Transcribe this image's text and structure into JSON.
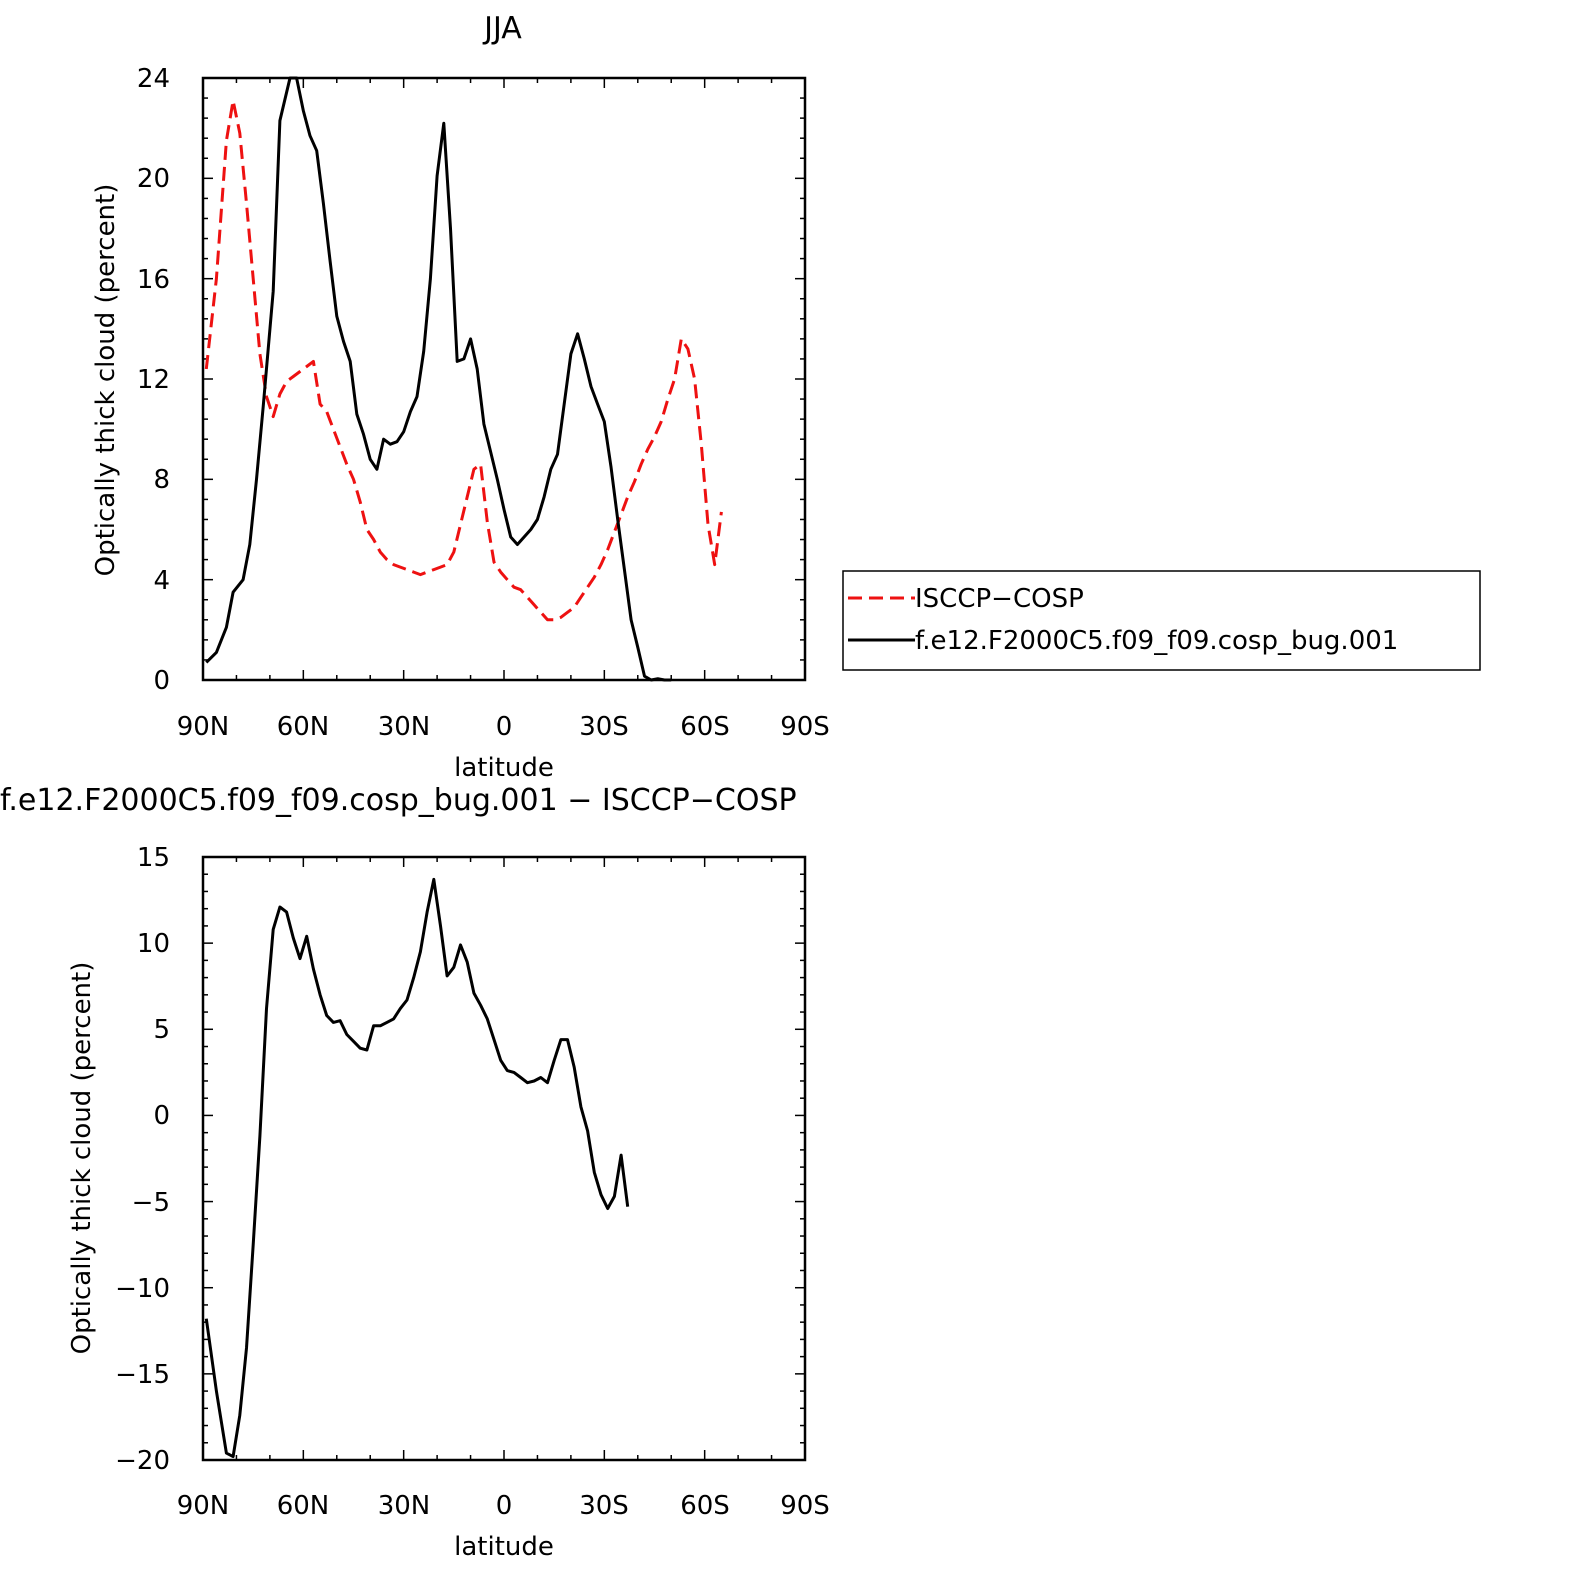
{
  "colors": {
    "model": "#000000",
    "obs": "#ee1111",
    "frame": "#000000",
    "background": "#ffffff"
  },
  "chart_data": [
    {
      "id": "top",
      "type": "line",
      "title": "JJA",
      "xlabel": "latitude",
      "ylabel": "Optically thick cloud (percent)",
      "xlim": [
        90,
        -90
      ],
      "ylim": [
        0,
        24
      ],
      "x_ticks": [
        90,
        60,
        30,
        0,
        -30,
        -60,
        -90
      ],
      "x_tick_labels": [
        "90N",
        "60N",
        "30N",
        "0",
        "30S",
        "60S",
        "90S"
      ],
      "y_ticks": [
        0,
        4,
        8,
        12,
        16,
        20,
        24
      ],
      "y_tick_labels": [
        "0",
        "4",
        "8",
        "12",
        "16",
        "20",
        "24"
      ],
      "grid": false,
      "legend_placement": "right",
      "legend": [
        {
          "label": "ISCCP-COSP",
          "color": "#ee1111",
          "dash": true
        },
        {
          "label": "f.e12.F2000C5.f09_f09.cosp_bug.001",
          "color": "#000000",
          "dash": false
        }
      ],
      "series": [
        {
          "name": "ISCCP-COSP",
          "color": "#ee1111",
          "dash": true,
          "points": [
            [
              89,
              12.4
            ],
            [
              86,
              16.0
            ],
            [
              83,
              21.5
            ],
            [
              81,
              23.1
            ],
            [
              79,
              21.8
            ],
            [
              77,
              19.0
            ],
            [
              75,
              16.0
            ],
            [
              73,
              13.0
            ],
            [
              71,
              11.3
            ],
            [
              69,
              10.5
            ],
            [
              67,
              11.4
            ],
            [
              65,
              11.9
            ],
            [
              63,
              12.1
            ],
            [
              61,
              12.3
            ],
            [
              59,
              12.5
            ],
            [
              57,
              12.7
            ],
            [
              55,
              11.0
            ],
            [
              53,
              10.7
            ],
            [
              51,
              10.0
            ],
            [
              49,
              9.3
            ],
            [
              47,
              8.6
            ],
            [
              45,
              8.0
            ],
            [
              43,
              7.1
            ],
            [
              41,
              6.0
            ],
            [
              39,
              5.6
            ],
            [
              37,
              5.1
            ],
            [
              35,
              4.8
            ],
            [
              33,
              4.6
            ],
            [
              31,
              4.5
            ],
            [
              29,
              4.4
            ],
            [
              27,
              4.3
            ],
            [
              25,
              4.2
            ],
            [
              23,
              4.3
            ],
            [
              21,
              4.4
            ],
            [
              19,
              4.5
            ],
            [
              17,
              4.6
            ],
            [
              15,
              5.1
            ],
            [
              13,
              6.2
            ],
            [
              11,
              7.3
            ],
            [
              9,
              8.4
            ],
            [
              7,
              8.6
            ],
            [
              5,
              6.3
            ],
            [
              3,
              4.7
            ],
            [
              1,
              4.3
            ],
            [
              -1,
              4.0
            ],
            [
              -3,
              3.7
            ],
            [
              -5,
              3.6
            ],
            [
              -7,
              3.3
            ],
            [
              -9,
              3.0
            ],
            [
              -11,
              2.7
            ],
            [
              -13,
              2.4
            ],
            [
              -15,
              2.4
            ],
            [
              -17,
              2.5
            ],
            [
              -19,
              2.7
            ],
            [
              -21,
              2.9
            ],
            [
              -23,
              3.3
            ],
            [
              -25,
              3.7
            ],
            [
              -27,
              4.1
            ],
            [
              -29,
              4.6
            ],
            [
              -31,
              5.2
            ],
            [
              -33,
              5.9
            ],
            [
              -35,
              6.6
            ],
            [
              -37,
              7.3
            ],
            [
              -39,
              7.9
            ],
            [
              -41,
              8.6
            ],
            [
              -43,
              9.2
            ],
            [
              -45,
              9.7
            ],
            [
              -47,
              10.3
            ],
            [
              -49,
              11.2
            ],
            [
              -51,
              12.0
            ],
            [
              -53,
              13.6
            ],
            [
              -55,
              13.2
            ],
            [
              -57,
              12.0
            ],
            [
              -59,
              9.4
            ],
            [
              -61,
              6.2
            ],
            [
              -63,
              4.6
            ],
            [
              -65,
              6.7
            ]
          ]
        },
        {
          "name": "f.e12.F2000C5.f09_f09.cosp_bug.001",
          "color": "#000000",
          "dash": false,
          "points": [
            [
              89,
              0.7
            ],
            [
              86,
              1.1
            ],
            [
              83,
              2.1
            ],
            [
              81,
              3.5
            ],
            [
              78,
              4.0
            ],
            [
              76,
              5.4
            ],
            [
              74,
              8.0
            ],
            [
              72,
              10.9
            ],
            [
              69,
              15.5
            ],
            [
              67,
              22.3
            ],
            [
              64,
              24.0
            ],
            [
              62,
              24.0
            ],
            [
              60,
              22.7
            ],
            [
              58,
              21.7
            ],
            [
              56,
              21.1
            ],
            [
              54,
              19.0
            ],
            [
              52,
              16.7
            ],
            [
              50,
              14.5
            ],
            [
              48,
              13.5
            ],
            [
              46,
              12.7
            ],
            [
              44,
              10.6
            ],
            [
              42,
              9.8
            ],
            [
              40,
              8.8
            ],
            [
              38,
              8.4
            ],
            [
              36,
              9.6
            ],
            [
              34,
              9.4
            ],
            [
              32,
              9.5
            ],
            [
              30,
              9.9
            ],
            [
              28,
              10.7
            ],
            [
              26,
              11.3
            ],
            [
              24,
              13.1
            ],
            [
              22,
              16.0
            ],
            [
              20,
              20.1
            ],
            [
              18,
              22.2
            ],
            [
              16,
              18.0
            ],
            [
              14,
              12.7
            ],
            [
              12,
              12.8
            ],
            [
              10,
              13.6
            ],
            [
              8,
              12.4
            ],
            [
              6,
              10.2
            ],
            [
              4,
              9.1
            ],
            [
              2,
              8.0
            ],
            [
              0,
              6.8
            ],
            [
              -2,
              5.7
            ],
            [
              -4,
              5.4
            ],
            [
              -6,
              5.7
            ],
            [
              -8,
              6.0
            ],
            [
              -10,
              6.4
            ],
            [
              -12,
              7.3
            ],
            [
              -14,
              8.4
            ],
            [
              -16,
              9.0
            ],
            [
              -18,
              11.0
            ],
            [
              -20,
              13.0
            ],
            [
              -22,
              13.8
            ],
            [
              -24,
              12.8
            ],
            [
              -26,
              11.7
            ],
            [
              -28,
              11.0
            ],
            [
              -30,
              10.3
            ],
            [
              -32,
              8.5
            ],
            [
              -34,
              6.4
            ],
            [
              -36,
              4.4
            ],
            [
              -38,
              2.4
            ],
            [
              -40,
              1.3
            ],
            [
              -42,
              0.15
            ],
            [
              -44,
              0.0
            ],
            [
              -46,
              0.05
            ],
            [
              -48,
              0.0
            ],
            [
              -50,
              0.0
            ]
          ]
        }
      ]
    },
    {
      "id": "bottom",
      "type": "line",
      "title": "f.e12.F2000C5.f09_f09.cosp_bug.001 - ISCCP-COSP",
      "xlabel": "latitude",
      "ylabel": "Optically thick cloud (percent)",
      "xlim": [
        90,
        -90
      ],
      "ylim": [
        -20,
        15
      ],
      "x_ticks": [
        90,
        60,
        30,
        0,
        -30,
        -60,
        -90
      ],
      "x_tick_labels": [
        "90N",
        "60N",
        "30N",
        "0",
        "30S",
        "60S",
        "90S"
      ],
      "y_ticks": [
        -20,
        -15,
        -10,
        -5,
        0,
        5,
        10,
        15
      ],
      "y_tick_labels": [
        "-20",
        "-15",
        "-10",
        "-5",
        "0",
        "5",
        "10",
        "15"
      ],
      "grid": false,
      "series": [
        {
          "name": "f.e12.F2000C5.f09_f09.cosp_bug.001 - ISCCP-COSP",
          "color": "#000000",
          "dash": false,
          "points": [
            [
              89,
              -11.8
            ],
            [
              86,
              -16.0
            ],
            [
              83,
              -19.6
            ],
            [
              81,
              -19.8
            ],
            [
              79,
              -17.4
            ],
            [
              77,
              -13.5
            ],
            [
              75,
              -7.5
            ],
            [
              73,
              -1.2
            ],
            [
              71,
              6.2
            ],
            [
              69,
              10.8
            ],
            [
              67,
              12.1
            ],
            [
              65,
              11.8
            ],
            [
              63,
              10.3
            ],
            [
              61,
              9.1
            ],
            [
              59,
              10.4
            ],
            [
              57,
              8.5
            ],
            [
              55,
              7.0
            ],
            [
              53,
              5.8
            ],
            [
              51,
              5.4
            ],
            [
              49,
              5.5
            ],
            [
              47,
              4.7
            ],
            [
              45,
              4.3
            ],
            [
              43,
              3.9
            ],
            [
              41,
              3.8
            ],
            [
              39,
              5.2
            ],
            [
              37,
              5.2
            ],
            [
              35,
              5.4
            ],
            [
              33,
              5.6
            ],
            [
              31,
              6.2
            ],
            [
              29,
              6.7
            ],
            [
              27,
              8.0
            ],
            [
              25,
              9.5
            ],
            [
              23,
              11.8
            ],
            [
              21,
              13.7
            ],
            [
              19,
              11.0
            ],
            [
              17,
              8.1
            ],
            [
              15,
              8.6
            ],
            [
              13,
              9.9
            ],
            [
              11,
              8.9
            ],
            [
              9,
              7.1
            ],
            [
              7,
              6.4
            ],
            [
              5,
              5.6
            ],
            [
              3,
              4.4
            ],
            [
              1,
              3.2
            ],
            [
              -1,
              2.6
            ],
            [
              -3,
              2.5
            ],
            [
              -5,
              2.2
            ],
            [
              -7,
              1.9
            ],
            [
              -9,
              2.0
            ],
            [
              -11,
              2.2
            ],
            [
              -13,
              1.9
            ],
            [
              -15,
              3.2
            ],
            [
              -17,
              4.4
            ],
            [
              -19,
              4.4
            ],
            [
              -21,
              2.8
            ],
            [
              -23,
              0.5
            ],
            [
              -25,
              -0.9
            ],
            [
              -27,
              -3.3
            ],
            [
              -29,
              -4.6
            ],
            [
              -31,
              -5.4
            ],
            [
              -33,
              -4.7
            ],
            [
              -35,
              -2.3
            ],
            [
              -37,
              -5.3
            ]
          ]
        }
      ]
    }
  ]
}
